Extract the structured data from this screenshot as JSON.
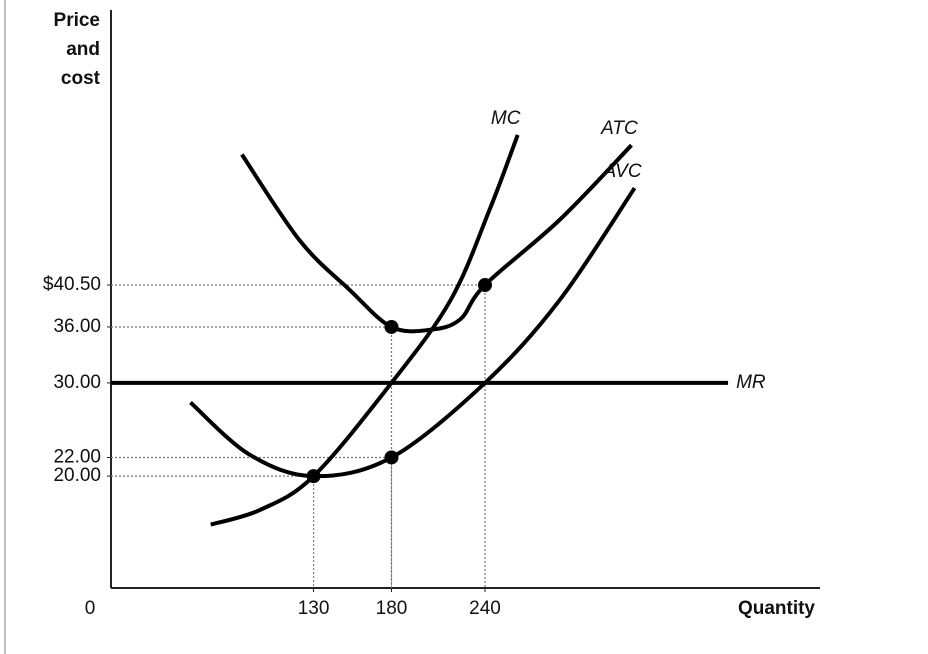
{
  "chart_data": {
    "type": "line",
    "ylabel": "Price and cost",
    "xlabel": "Quantity",
    "origin_label": "0",
    "xlim": [
      0,
      455
    ],
    "ylim": [
      8,
      70
    ],
    "xticks": [
      130,
      180,
      240
    ],
    "yticks": [
      {
        "value": 40.5,
        "label": "$40.50"
      },
      {
        "value": 36,
        "label": "36.00"
      },
      {
        "value": 30,
        "label": "30.00"
      },
      {
        "value": 22,
        "label": "22.00"
      },
      {
        "value": 20,
        "label": "20.00"
      }
    ],
    "series": [
      {
        "name": "MC",
        "color": "#000000",
        "x": [
          64,
          96,
          130,
          180,
          218,
          243,
          261
        ],
        "values": [
          14.8,
          16.4,
          20,
          30,
          38.9,
          48.6,
          56.6
        ]
      },
      {
        "name": "ATC",
        "color": "#000000",
        "x": [
          84,
          121,
          153,
          180,
          205,
          224,
          240,
          288,
          334
        ],
        "values": [
          54.5,
          45.3,
          40,
          36,
          35.7,
          36.8,
          40.5,
          47.5,
          55.5
        ]
      },
      {
        "name": "AVC",
        "color": "#000000",
        "x": [
          51,
          89,
          130,
          180,
          240,
          288,
          336
        ],
        "values": [
          27.9,
          22.3,
          20,
          22,
          30,
          38.9,
          50.9
        ]
      },
      {
        "name": "MR",
        "color": "#000000",
        "x": [
          0,
          396
        ],
        "values": [
          30,
          30
        ]
      }
    ],
    "points": [
      {
        "x": 130,
        "y": 20
      },
      {
        "x": 180,
        "y": 36
      },
      {
        "x": 180,
        "y": 22
      },
      {
        "x": 240,
        "y": 40.5
      }
    ]
  }
}
